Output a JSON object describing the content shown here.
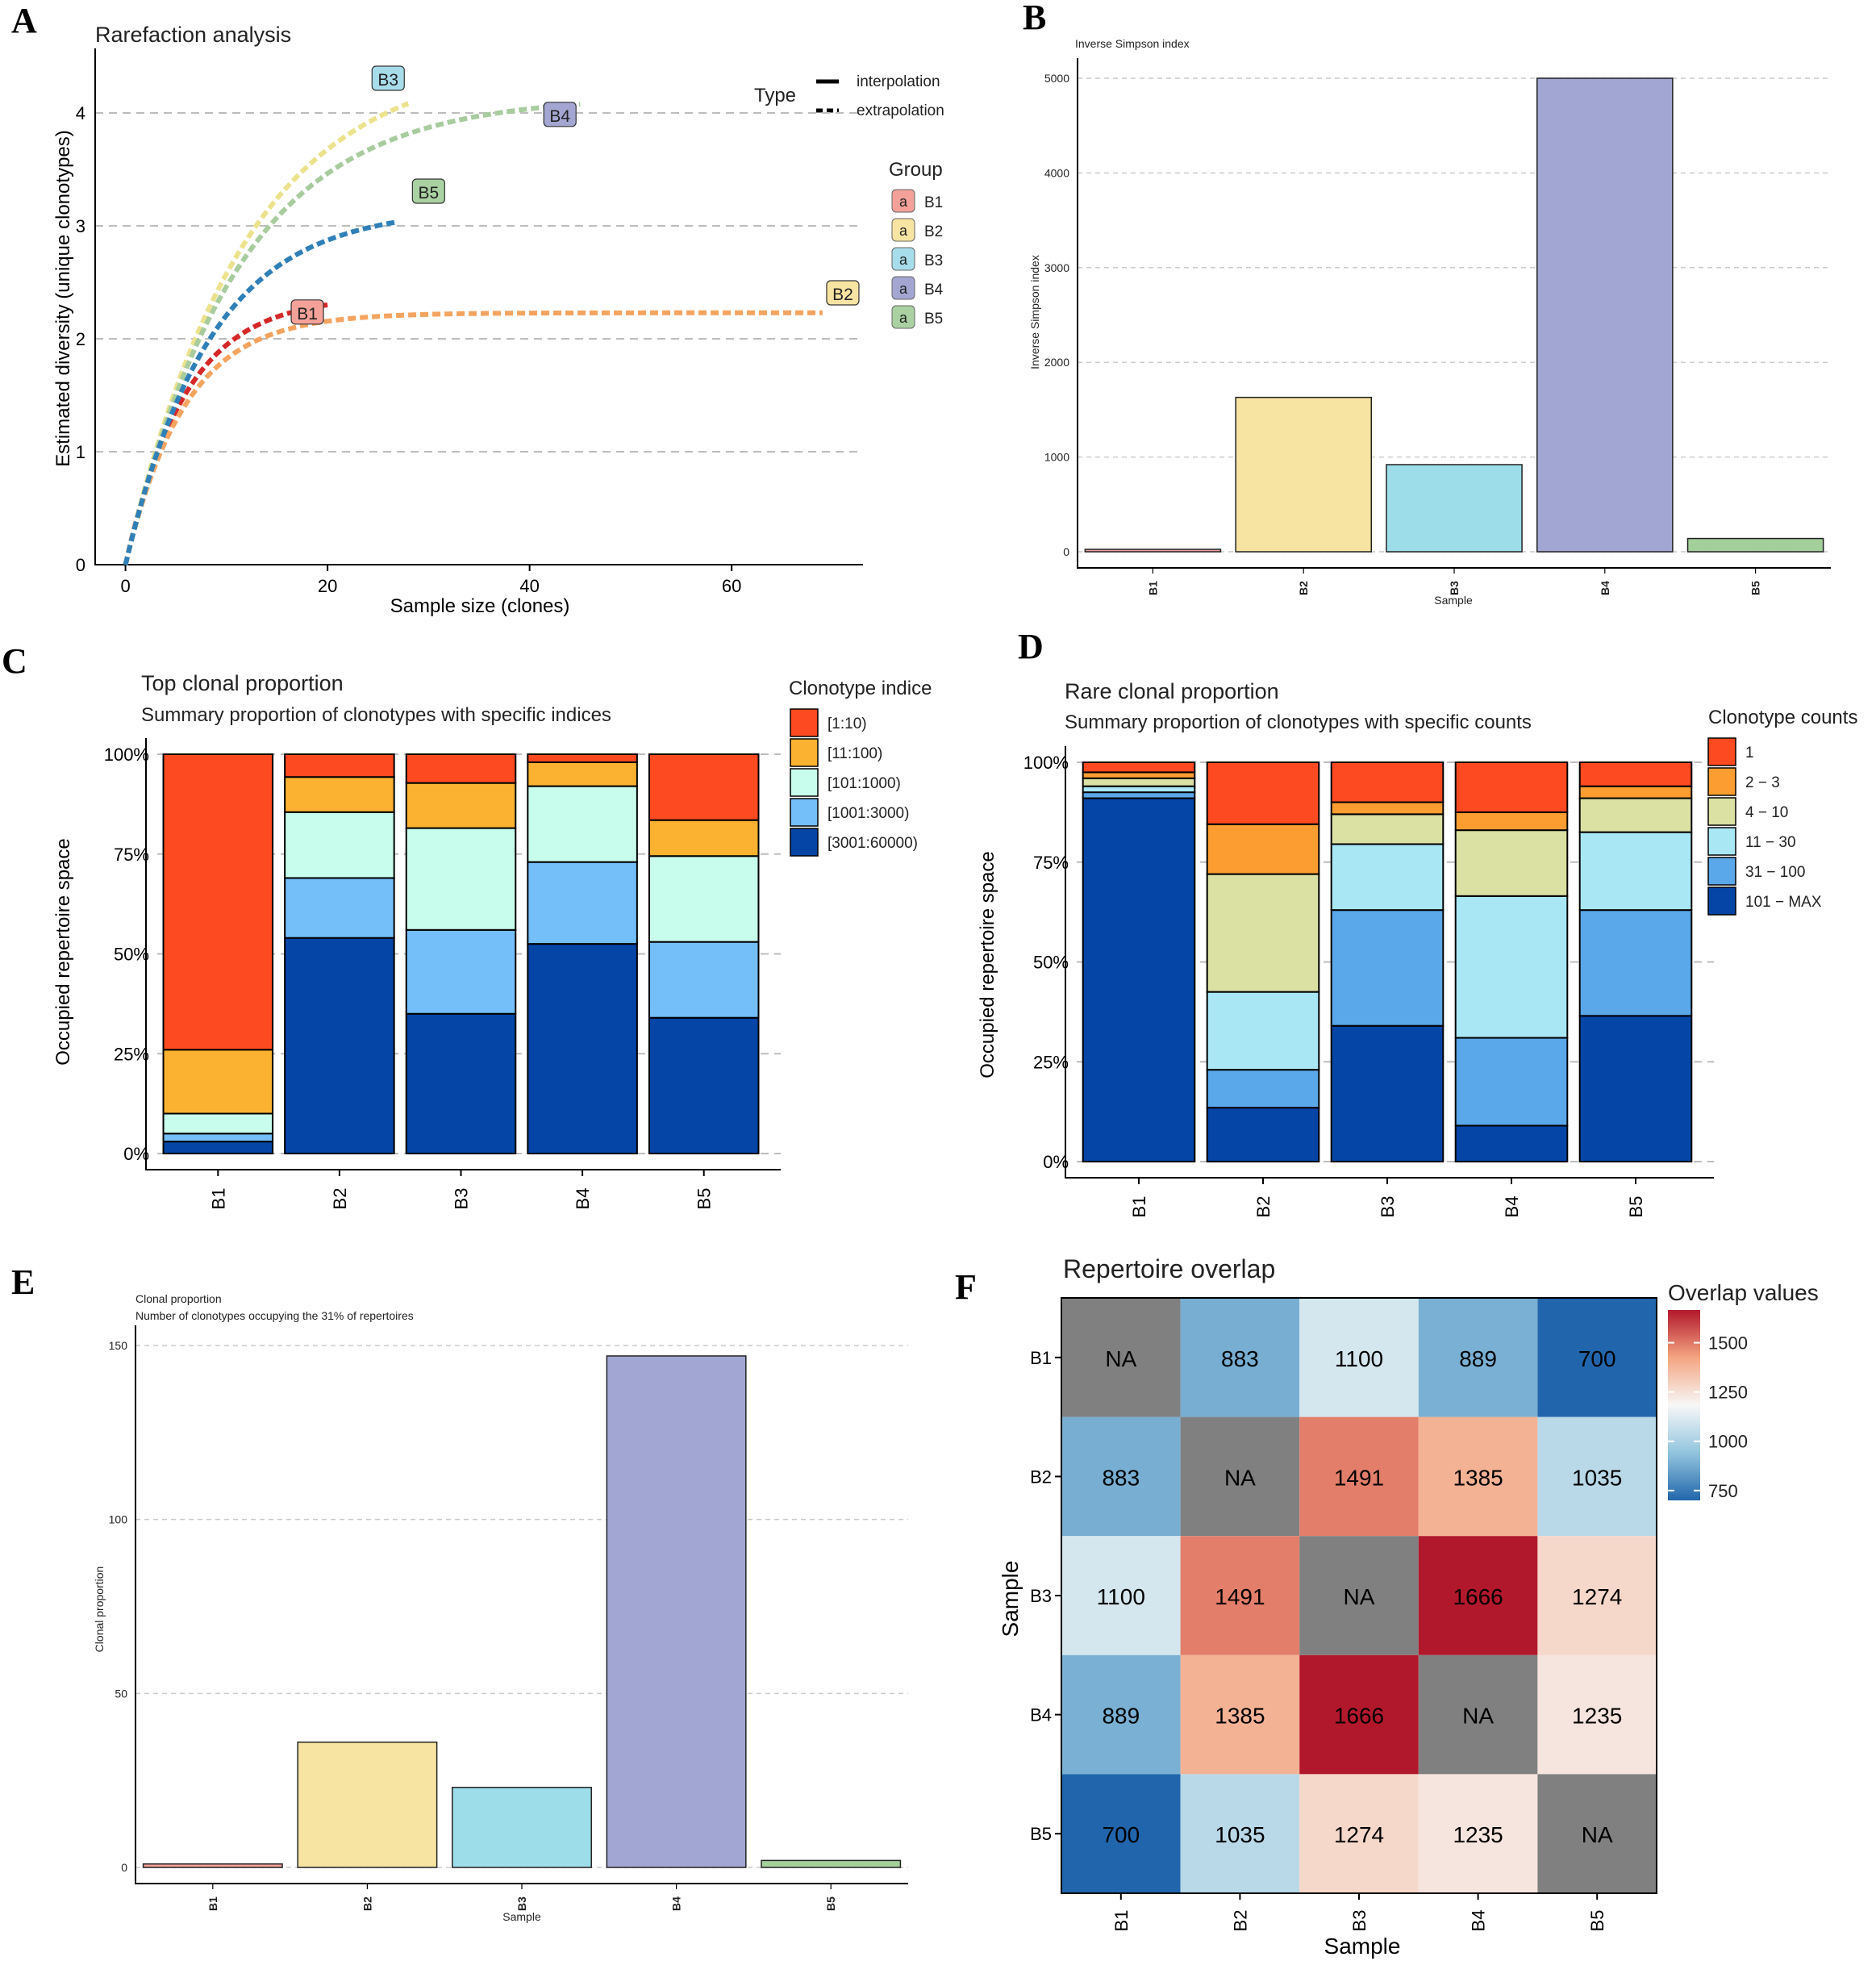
{
  "chart_data": [
    {
      "panel": "A",
      "type": "line",
      "title": "Rarefaction analysis",
      "xlabel": "Sample size (clones)",
      "ylabel": "Estimated diversity (unique clonotypes)",
      "xlim": [
        -3,
        73
      ],
      "ylim": [
        0,
        4.5
      ],
      "xticks": [
        0,
        20,
        40,
        60
      ],
      "yticks": [
        0,
        1,
        2,
        3,
        4
      ],
      "legend_type_title": "Type",
      "legend_type": [
        "interpolation",
        "extrapolation"
      ],
      "legend_group_title": "Group",
      "legend_key_label": "a",
      "series": [
        {
          "name": "B1",
          "color": "#d62728",
          "asymptote": 2.38,
          "rate": 0.17,
          "max_x": 20,
          "label_x": 18,
          "label_y": 2.23
        },
        {
          "name": "B2",
          "color": "#f4a460",
          "asymptote": 2.23,
          "rate": 0.17,
          "max_x": 69,
          "label_x": 71,
          "label_y": 2.4
        },
        {
          "name": "B3",
          "color": "#ece28d",
          "asymptote": 4.5,
          "rate": 0.085,
          "max_x": 28,
          "label_x": 26,
          "label_y": 4.3
        },
        {
          "name": "B4",
          "color": "#a8cc9e",
          "asymptote": 4.15,
          "rate": 0.09,
          "max_x": 45,
          "label_x": 43,
          "label_y": 3.98
        },
        {
          "name": "B5",
          "color": "#2f7fb8",
          "asymptote": 3.16,
          "rate": 0.12,
          "max_x": 27,
          "label_x": 30,
          "label_y": 3.3
        }
      ],
      "label_fill": {
        "B1": "#f4a199",
        "B2": "#f7e4a3",
        "B3": "#a7dcea",
        "B4": "#a4a6d2",
        "B5": "#a9d1a1"
      }
    },
    {
      "panel": "B",
      "type": "bar",
      "title": "Inverse Simpson index",
      "xlabel": "Sample",
      "ylabel": "Inverse Simpson index",
      "categories": [
        "B1",
        "B2",
        "B3",
        "B4",
        "B5"
      ],
      "values": [
        5,
        1630,
        920,
        5000,
        140
      ],
      "ylim": [
        0,
        5000
      ],
      "yticks": [
        0,
        1000,
        2000,
        3000,
        4000,
        5000
      ],
      "colors": [
        "#f4a199",
        "#f7e4a3",
        "#9ddde9",
        "#a1a6d3",
        "#a3cf9b"
      ]
    },
    {
      "panel": "C",
      "type": "bar",
      "stacked": true,
      "title": "Top clonal proportion",
      "subtitle": "Summary proportion of clonotypes with specific indices",
      "xlabel": "",
      "ylabel": "Occupied repertoire space",
      "categories": [
        "B1",
        "B2",
        "B3",
        "B4",
        "B5"
      ],
      "yticks": [
        "0%",
        "25%",
        "50%",
        "75%",
        "100%"
      ],
      "legend_title": "Clonotype indice",
      "series": [
        {
          "name": "[3001:60000)",
          "color": "#0545a6",
          "values": [
            3,
            54,
            35,
            52.5,
            34
          ]
        },
        {
          "name": "[1001:3000)",
          "color": "#74befa",
          "values": [
            2,
            15,
            21,
            20.5,
            19
          ]
        },
        {
          "name": "[101:1000)",
          "color": "#c8fcec",
          "values": [
            5,
            16.5,
            25.5,
            19,
            21.5
          ]
        },
        {
          "name": "[11:100)",
          "color": "#fbb231",
          "values": [
            16,
            8.8,
            11.3,
            6,
            9
          ]
        },
        {
          "name": "[1:10)",
          "color": "#fe4a20",
          "values": [
            74,
            5.7,
            7.2,
            2,
            16.5
          ]
        }
      ]
    },
    {
      "panel": "D",
      "type": "bar",
      "stacked": true,
      "title": "Rare clonal proportion",
      "subtitle": "Summary proportion of clonotypes with specific counts",
      "xlabel": "",
      "ylabel": "Occupied repertoire space",
      "categories": [
        "B1",
        "B2",
        "B3",
        "B4",
        "B5"
      ],
      "yticks": [
        "0%",
        "25%",
        "50%",
        "75%",
        "100%"
      ],
      "legend_title": "Clonotype counts",
      "series": [
        {
          "name": "101 − MAX",
          "color": "#0545a6",
          "values": [
            91,
            13.5,
            34,
            9,
            36.5
          ]
        },
        {
          "name": "31 − 100",
          "color": "#5aa7e9",
          "values": [
            1.5,
            9.5,
            29,
            22,
            26.5
          ]
        },
        {
          "name": "11 − 30",
          "color": "#a9e7f5",
          "values": [
            1.5,
            19.5,
            16.5,
            35.5,
            19.5
          ]
        },
        {
          "name": "4 − 10",
          "color": "#dbe0a3",
          "values": [
            2,
            29.5,
            7.5,
            16.5,
            8.5
          ]
        },
        {
          "name": "2 − 3",
          "color": "#fb9d30",
          "values": [
            1.5,
            12.5,
            3,
            4.5,
            3
          ]
        },
        {
          "name": "1",
          "color": "#fe4a20",
          "values": [
            2.5,
            15.5,
            10,
            12.5,
            6
          ]
        }
      ]
    },
    {
      "panel": "E",
      "type": "bar",
      "title": "Clonal proportion",
      "subtitle": "Number of clonotypes occupying the 31% of repertoires",
      "xlabel": "Sample",
      "ylabel": "Clonal proportion",
      "categories": [
        "B1",
        "B2",
        "B3",
        "B4",
        "B5"
      ],
      "values": [
        1,
        36,
        23,
        147,
        2
      ],
      "ylim": [
        0,
        150
      ],
      "yticks": [
        0,
        50,
        100,
        150
      ],
      "colors": [
        "#f4a199",
        "#f7e4a3",
        "#9ddde9",
        "#a1a6d3",
        "#a3cf9b"
      ]
    },
    {
      "panel": "F",
      "type": "heatmap",
      "title": "Repertoire overlap",
      "xlabel": "Sample",
      "ylabel": "Sample",
      "rows": [
        "B1",
        "B2",
        "B3",
        "B4",
        "B5"
      ],
      "cols": [
        "B1",
        "B2",
        "B3",
        "B4",
        "B5"
      ],
      "values": [
        [
          null,
          883,
          1100,
          889,
          700
        ],
        [
          883,
          null,
          1491,
          1385,
          1035
        ],
        [
          1100,
          1491,
          null,
          1666,
          1274
        ],
        [
          889,
          1385,
          1666,
          null,
          1235
        ],
        [
          700,
          1035,
          1274,
          1235,
          null
        ]
      ],
      "na_label": "NA",
      "legend_title": "Overlap values",
      "legend_ticks": [
        750,
        1000,
        1250,
        1500
      ],
      "color_range": [
        700,
        1666
      ]
    }
  ],
  "panel_letters": [
    "A",
    "B",
    "C",
    "D",
    "E",
    "F"
  ]
}
